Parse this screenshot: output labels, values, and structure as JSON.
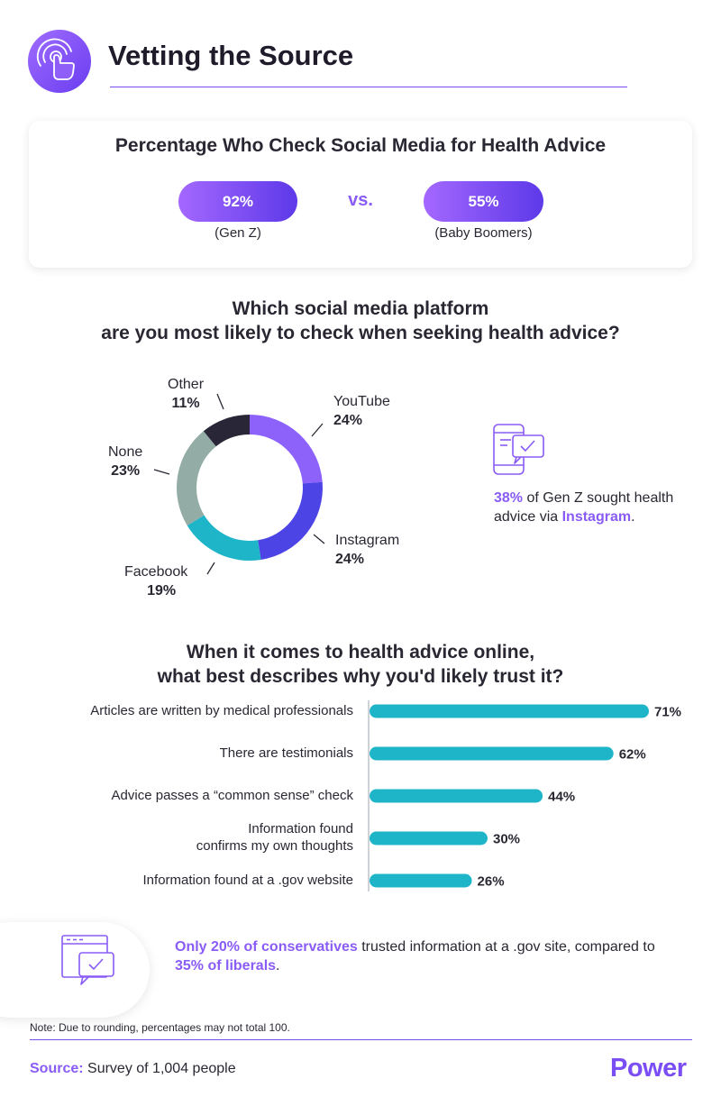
{
  "header": {
    "title": "Vetting the Source",
    "icon": "touch-pointer-icon"
  },
  "comparison": {
    "title": "Percentage Who Check Social Media for Health Advice",
    "vs_label": "vs.",
    "items": [
      {
        "value": "92%",
        "group": "(Gen Z)"
      },
      {
        "value": "55%",
        "group": "(Baby Boomers)"
      }
    ]
  },
  "platform_question": {
    "line1": "Which social media platform",
    "line2": "are you most likely to check when seeking health advice?"
  },
  "instagram_callout": {
    "stat": "38%",
    "text": " of Gen Z sought health advice via ",
    "platform": "Instagram",
    "end": ".",
    "icon": "phone-chat-icon"
  },
  "trust_question": {
    "line1": "When it comes to health advice online,",
    "line2": "what best describes why you'd likely trust it?"
  },
  "gov_callout": {
    "highlight1": "Only 20% of conservatives",
    "text1": " trusted information at a .gov site, compared to ",
    "highlight2": "35% of liberals",
    "text2": ".",
    "icon": "browser-chat-icon"
  },
  "footer": {
    "note": "Note: Due to rounding, percentages may not total 100.",
    "source_label": "Source:",
    "source_text": " Survey of 1,004 people",
    "logo": "Power"
  },
  "colors": {
    "accent": "#8a5cf6",
    "bar": "#1fb5c9",
    "youtube": "#8d62fb",
    "instagram": "#4d44e6",
    "facebook": "#1fb5c9",
    "none": "#93ada6",
    "other": "#292737"
  },
  "chart_data": [
    {
      "type": "pie",
      "variant": "donut",
      "categories": [
        "YouTube",
        "Instagram",
        "Facebook",
        "None",
        "Other"
      ],
      "values": [
        24,
        24,
        19,
        23,
        11
      ],
      "labels": [
        "24%",
        "24%",
        "19%",
        "23%",
        "11%"
      ]
    },
    {
      "type": "bar",
      "orientation": "horizontal",
      "categories": [
        [
          "Articles are written by medical professionals"
        ],
        [
          "There are testimonials"
        ],
        [
          "Advice passes a “common sense” check"
        ],
        [
          "Information found",
          "confirms my own thoughts"
        ],
        [
          "Information found at a .gov website"
        ]
      ],
      "values": [
        71,
        62,
        44,
        30,
        26
      ],
      "labels": [
        "71%",
        "62%",
        "44%",
        "30%",
        "26%"
      ]
    }
  ]
}
